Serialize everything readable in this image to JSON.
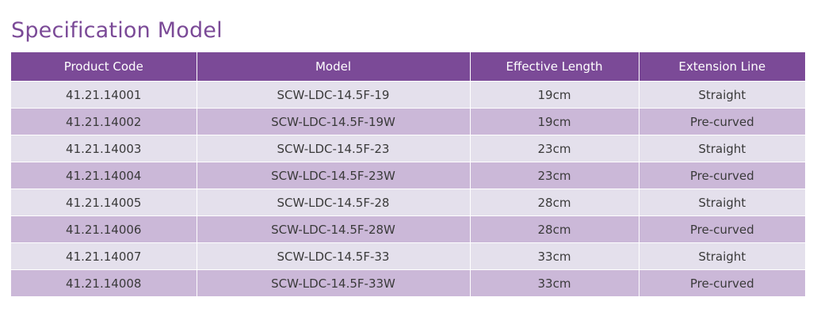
{
  "title": "Specification Model",
  "table": {
    "headers": [
      "Product Code",
      "Model",
      "Effective Length",
      "Extension  Line"
    ],
    "rows": [
      [
        "41.21.14001",
        "SCW-LDC-14.5F-19",
        "19cm",
        "Straight"
      ],
      [
        "41.21.14002",
        "SCW-LDC-14.5F-19W",
        "19cm",
        "Pre-curved"
      ],
      [
        "41.21.14003",
        "SCW-LDC-14.5F-23",
        "23cm",
        "Straight"
      ],
      [
        "41.21.14004",
        "SCW-LDC-14.5F-23W",
        "23cm",
        "Pre-curved"
      ],
      [
        "41.21.14005",
        "SCW-LDC-14.5F-28",
        "28cm",
        "Straight"
      ],
      [
        "41.21.14006",
        "SCW-LDC-14.5F-28W",
        "28cm",
        "Pre-curved"
      ],
      [
        "41.21.14007",
        "SCW-LDC-14.5F-33",
        "33cm",
        "Straight"
      ],
      [
        "41.21.14008",
        "SCW-LDC-14.5F-33W",
        "33cm",
        "Pre-curved"
      ]
    ]
  },
  "colors": {
    "header_bg": "#7b4a97",
    "row_light": "#e4e0ec",
    "row_dark": "#cbb8d8",
    "title_text": "#7b4a97"
  }
}
